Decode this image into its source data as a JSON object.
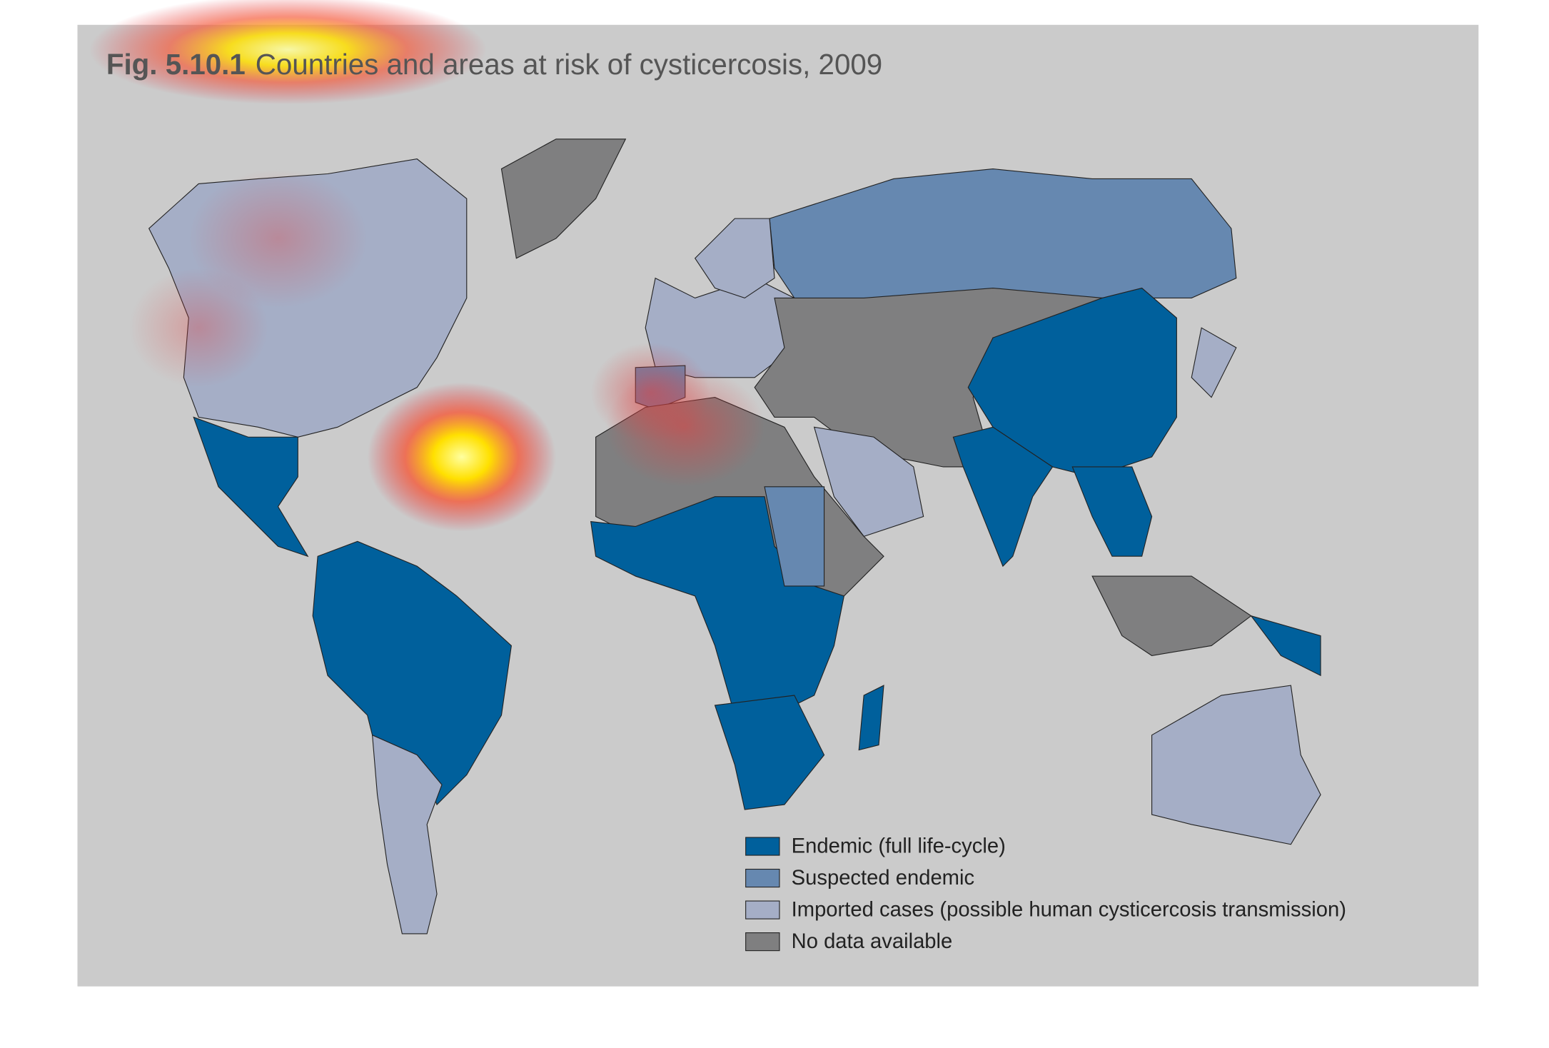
{
  "figure": {
    "number": "Fig. 5.10.1",
    "title": "Countries and areas at risk of cysticercosis, 2009"
  },
  "legend": [
    {
      "label": "Endemic (full life-cycle)",
      "color": "#00609c"
    },
    {
      "label": "Suspected endemic",
      "color": "#6688b0"
    },
    {
      "label": "Imported cases (possible human cysticercosis transmission)",
      "color": "#a5aec6"
    },
    {
      "label": "No data available",
      "color": "#7f7f80"
    }
  ]
}
